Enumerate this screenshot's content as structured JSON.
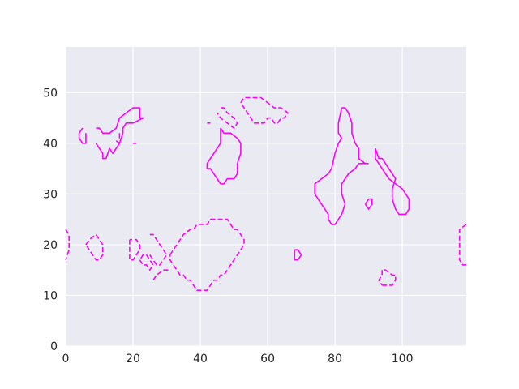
{
  "chart_data": {
    "type": "contour",
    "title": "",
    "xlabel": "",
    "ylabel": "",
    "xlim": [
      0,
      119
    ],
    "ylim": [
      0,
      59
    ],
    "x_ticks": [
      0,
      20,
      40,
      60,
      80,
      100
    ],
    "y_ticks": [
      0,
      10,
      20,
      30,
      40,
      50
    ],
    "grid": true,
    "background_color": "#eaeaf2",
    "grid_color": "#ffffff",
    "line_color": "#ff00ff",
    "series": [
      {
        "style": "solid",
        "contours": [
          [
            [
              5,
              43
            ],
            [
              4,
              42
            ],
            [
              4,
              41
            ],
            [
              5,
              40
            ],
            [
              6,
              40
            ],
            [
              6,
              42
            ]
          ],
          [
            [
              9,
              43
            ],
            [
              10,
              43
            ],
            [
              11,
              42
            ],
            [
              13,
              42
            ],
            [
              15,
              43
            ],
            [
              16,
              45
            ],
            [
              18,
              46
            ],
            [
              20,
              47
            ],
            [
              22,
              47
            ],
            [
              22,
              45
            ],
            [
              23,
              45
            ],
            [
              20,
              44
            ],
            [
              18,
              44
            ],
            [
              17,
              43
            ],
            [
              17,
              42
            ],
            [
              16,
              40
            ],
            [
              15,
              39
            ],
            [
              14,
              38
            ],
            [
              13,
              39
            ],
            [
              12,
              37
            ],
            [
              11,
              37
            ],
            [
              11,
              38
            ],
            [
              10,
              39
            ],
            [
              9,
              40
            ]
          ],
          [
            [
              16,
              42
            ],
            [
              16,
              41
            ]
          ],
          [
            [
              15,
              40.5
            ],
            [
              16,
              40
            ]
          ],
          [
            [
              20,
              40
            ],
            [
              21,
              40
            ]
          ],
          [
            [
              42,
              44
            ],
            [
              43,
              44
            ]
          ],
          [
            [
              46,
              43
            ],
            [
              46,
              40
            ],
            [
              45,
              39
            ],
            [
              44,
              38
            ],
            [
              43,
              37
            ],
            [
              42,
              36
            ],
            [
              42,
              35
            ],
            [
              43,
              35
            ],
            [
              44,
              34
            ],
            [
              45,
              33
            ],
            [
              46,
              32
            ],
            [
              47,
              32
            ],
            [
              48,
              33
            ],
            [
              50,
              33
            ],
            [
              51,
              34
            ],
            [
              51,
              36
            ],
            [
              52,
              38
            ],
            [
              52,
              40
            ],
            [
              51,
              41
            ],
            [
              49,
              42
            ],
            [
              47,
              42
            ],
            [
              46,
              43
            ]
          ],
          [
            [
              82,
              47
            ],
            [
              83,
              47
            ],
            [
              84,
              46
            ],
            [
              85,
              44
            ],
            [
              85,
              42
            ],
            [
              86,
              40
            ],
            [
              87,
              39
            ],
            [
              87,
              37
            ],
            [
              89,
              36
            ],
            [
              87,
              36
            ],
            [
              86,
              35
            ],
            [
              84,
              34
            ],
            [
              83,
              33
            ],
            [
              82,
              32
            ],
            [
              82,
              30
            ],
            [
              83,
              28
            ],
            [
              82,
              26
            ],
            [
              81,
              25
            ],
            [
              80,
              24
            ],
            [
              79,
              24
            ],
            [
              78,
              25
            ],
            [
              78,
              26
            ],
            [
              77,
              27
            ],
            [
              76,
              28
            ],
            [
              75,
              29
            ],
            [
              74,
              30
            ],
            [
              74,
              32
            ],
            [
              76,
              33
            ],
            [
              78,
              34
            ],
            [
              79,
              35
            ],
            [
              80,
              38
            ],
            [
              81,
              40
            ],
            [
              82,
              41
            ],
            [
              81,
              42
            ],
            [
              81,
              44
            ],
            [
              82,
              47
            ]
          ],
          [
            [
              89,
              36
            ],
            [
              90,
              36
            ]
          ],
          [
            [
              92,
              39
            ],
            [
              92,
              37
            ],
            [
              93,
              36
            ],
            [
              94,
              35
            ],
            [
              95,
              34
            ],
            [
              96,
              33
            ],
            [
              98,
              32
            ],
            [
              100,
              31
            ],
            [
              101,
              30
            ],
            [
              102,
              29
            ],
            [
              102,
              27
            ],
            [
              101,
              26
            ],
            [
              99,
              26
            ],
            [
              98,
              27
            ],
            [
              97,
              29
            ],
            [
              97,
              31
            ],
            [
              98,
              33
            ],
            [
              97,
              34
            ],
            [
              96,
              35
            ],
            [
              95,
              36
            ],
            [
              94,
              37
            ],
            [
              93,
              37
            ],
            [
              92,
              39
            ]
          ],
          [
            [
              89,
              28
            ],
            [
              90,
              27
            ],
            [
              91,
              28
            ],
            [
              91,
              29
            ],
            [
              90,
              29
            ],
            [
              89,
              28
            ]
          ],
          [
            [
              68,
              19
            ],
            [
              69,
              19
            ],
            [
              70,
              18
            ],
            [
              69,
              17
            ],
            [
              68,
              17
            ],
            [
              68,
              19
            ]
          ]
        ]
      },
      {
        "style": "dashed",
        "contours": [
          [
            [
              46,
              47
            ],
            [
              47,
              47
            ],
            [
              48,
              46
            ],
            [
              50,
              45
            ],
            [
              51,
              44
            ],
            [
              50,
              43
            ],
            [
              48,
              44
            ],
            [
              46,
              45
            ],
            [
              45,
              46
            ]
          ],
          [
            [
              52,
              48
            ],
            [
              53,
              49
            ],
            [
              55,
              49
            ],
            [
              58,
              49
            ],
            [
              60,
              48
            ],
            [
              62,
              47
            ],
            [
              64,
              47
            ],
            [
              66,
              46
            ],
            [
              65,
              45
            ],
            [
              64,
              45
            ],
            [
              63,
              44
            ],
            [
              62,
              44
            ],
            [
              61,
              45
            ],
            [
              60,
              45
            ],
            [
              59,
              44
            ],
            [
              57,
              44
            ],
            [
              56,
              44
            ],
            [
              55,
              45
            ],
            [
              54,
              46
            ],
            [
              53,
              47
            ],
            [
              52,
              48
            ]
          ],
          [
            [
              0,
              23
            ],
            [
              1,
              22
            ],
            [
              1,
              19
            ],
            [
              0,
              17
            ]
          ],
          [
            [
              6,
              20
            ],
            [
              7,
              21
            ],
            [
              9,
              22
            ],
            [
              10,
              21
            ],
            [
              11,
              20
            ],
            [
              11,
              18
            ],
            [
              10,
              17
            ],
            [
              9,
              17
            ],
            [
              8,
              18
            ],
            [
              7,
              19
            ],
            [
              6,
              20
            ]
          ],
          [
            [
              19,
              21
            ],
            [
              19,
              18
            ],
            [
              19,
              17
            ],
            [
              20,
              17
            ],
            [
              21,
              18
            ],
            [
              22,
              19
            ],
            [
              22,
              20
            ],
            [
              21,
              21
            ],
            [
              20,
              21
            ],
            [
              19,
              21
            ]
          ],
          [
            [
              22,
              17
            ],
            [
              23,
              16
            ],
            [
              24,
              16
            ],
            [
              25,
              15
            ],
            [
              26,
              16
            ],
            [
              25,
              17
            ],
            [
              24,
              18
            ],
            [
              23,
              18
            ],
            [
              22,
              17
            ]
          ],
          [
            [
              25,
              18
            ],
            [
              26,
              17
            ],
            [
              27,
              16
            ],
            [
              28,
              16
            ],
            [
              29,
              17
            ],
            [
              30,
              18
            ],
            [
              29,
              19
            ],
            [
              28,
              20
            ],
            [
              27,
              21
            ],
            [
              26,
              22
            ],
            [
              25,
              22
            ]
          ],
          [
            [
              26,
              13
            ],
            [
              27,
              14
            ],
            [
              29,
              15
            ],
            [
              30,
              15
            ],
            [
              31,
              15
            ]
          ],
          [
            [
              31,
              18
            ],
            [
              32,
              19
            ],
            [
              33,
              20
            ],
            [
              34,
              21
            ],
            [
              35,
              22
            ],
            [
              37,
              23
            ],
            [
              38,
              23
            ],
            [
              39,
              24
            ],
            [
              40,
              24
            ],
            [
              41,
              24
            ],
            [
              42,
              24
            ],
            [
              43,
              25
            ],
            [
              44,
              25
            ],
            [
              46,
              25
            ],
            [
              48,
              25
            ],
            [
              49,
              24
            ],
            [
              50,
              23
            ],
            [
              51,
              23
            ],
            [
              52,
              22
            ],
            [
              53,
              21
            ],
            [
              53,
              20
            ],
            [
              52,
              19
            ],
            [
              51,
              18
            ],
            [
              50,
              17
            ],
            [
              49,
              16
            ],
            [
              48,
              15
            ],
            [
              47,
              14
            ],
            [
              46,
              14
            ],
            [
              45,
              13
            ],
            [
              44,
              13
            ],
            [
              43,
              12
            ],
            [
              42,
              11
            ],
            [
              41,
              11
            ],
            [
              40,
              11
            ],
            [
              39,
              11
            ],
            [
              38,
              12
            ],
            [
              37,
              13
            ],
            [
              36,
              13
            ],
            [
              35,
              14
            ],
            [
              34,
              14
            ],
            [
              33,
              15
            ],
            [
              32,
              16
            ],
            [
              31,
              17
            ],
            [
              31,
              18
            ]
          ],
          [
            [
              94,
              12
            ],
            [
              95,
              12
            ],
            [
              96,
              12
            ],
            [
              97,
              12
            ],
            [
              98,
              13
            ],
            [
              98,
              14
            ],
            [
              97,
              14
            ],
            [
              95,
              15
            ],
            [
              94,
              15
            ],
            [
              94,
              14
            ],
            [
              93,
              13
            ],
            [
              94,
              12
            ]
          ],
          [
            [
              119,
              24
            ],
            [
              117,
              23
            ],
            [
              117,
              20
            ],
            [
              117,
              17
            ],
            [
              118,
              16
            ],
            [
              119,
              16
            ]
          ]
        ]
      }
    ]
  }
}
